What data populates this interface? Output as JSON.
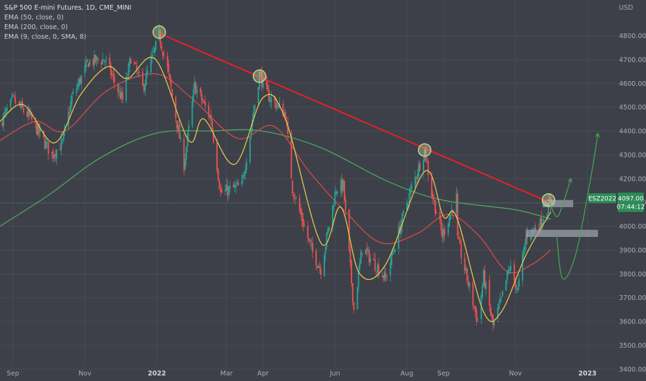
{
  "header": {
    "title": "S&P 500 E-mini Futures, 1D, CME_MINI",
    "indicators": [
      "EMA (50, close, 0)",
      "EMA (200, close, 0)",
      "EMA (9, close, 0, SMA, 8)"
    ]
  },
  "price_tag": {
    "symbol": "ESZ2022",
    "price": "4097.00",
    "countdown": "07:44:12"
  },
  "colors": {
    "background": "#3d4049",
    "grid": "#474b55",
    "up": "#26a69a",
    "down": "#ef5350",
    "ema9": "#e6c84c",
    "ema50": "#d74a4a",
    "ema200": "#4fa860",
    "trendline": "#e8202a",
    "projection": "#3fae4f",
    "highlight": "#b7d990"
  },
  "chart_data": {
    "type": "candlestick",
    "title": "S&P 500 E-mini Futures, 1D, CME_MINI",
    "currency": "USD",
    "y_ticks": [
      3400,
      3500,
      3600,
      3700,
      3800,
      3900,
      4000,
      4100,
      4200,
      4300,
      4400,
      4500,
      4600,
      4700,
      4800
    ],
    "y_tick_labels": [
      "3400.00",
      "3500.00",
      "3600.00",
      "3700.00",
      "3800.00",
      "3900.00",
      "4000.00",
      "4100.00",
      "4200.00",
      "4300.00",
      "4400.00",
      "4500.00",
      "4600.00",
      "4700.00",
      "4800.00"
    ],
    "ylim": [
      3350,
      4950
    ],
    "x_labels": [
      "Sep",
      "Nov",
      "2022",
      "Mar",
      "Apr",
      "Jun",
      "Aug",
      "Sep",
      "Nov",
      "2023"
    ],
    "x_label_dates": [
      "2021-09-01",
      "2021-11-01",
      "2022-01-01",
      "2022-03-01",
      "2022-04-01",
      "2022-06-01",
      "2022-08-01",
      "2022-09-01",
      "2022-11-01",
      "2023-01-01"
    ],
    "xlim": [
      "2021-08-21",
      "2023-01-26"
    ],
    "price_path": [
      [
        "2021-08-21",
        4430
      ],
      [
        "2021-09-01",
        4530
      ],
      [
        "2021-09-15",
        4460
      ],
      [
        "2021-10-04",
        4300
      ],
      [
        "2021-10-13",
        4350
      ],
      [
        "2021-10-21",
        4540
      ],
      [
        "2021-11-04",
        4690
      ],
      [
        "2021-11-18",
        4700
      ],
      [
        "2021-11-30",
        4560
      ],
      [
        "2021-12-03",
        4530
      ],
      [
        "2021-12-10",
        4710
      ],
      [
        "2021-12-20",
        4580
      ],
      [
        "2022-01-03",
        4800
      ],
      [
        "2022-01-10",
        4660
      ],
      [
        "2022-01-24",
        4260
      ],
      [
        "2022-02-02",
        4590
      ],
      [
        "2022-02-16",
        4450
      ],
      [
        "2022-02-24",
        4140
      ],
      [
        "2022-03-08",
        4160
      ],
      [
        "2022-03-14",
        4170
      ],
      [
        "2022-03-29",
        4640
      ],
      [
        "2022-04-05",
        4550
      ],
      [
        "2022-04-20",
        4470
      ],
      [
        "2022-04-26",
        4160
      ],
      [
        "2022-05-12",
        3900
      ],
      [
        "2022-05-20",
        3820
      ],
      [
        "2022-06-02",
        4160
      ],
      [
        "2022-06-08",
        4170
      ],
      [
        "2022-06-17",
        3650
      ],
      [
        "2022-06-24",
        3910
      ],
      [
        "2022-07-14",
        3780
      ],
      [
        "2022-08-01",
        4100
      ],
      [
        "2022-08-16",
        4320
      ],
      [
        "2022-08-22",
        4140
      ],
      [
        "2022-08-31",
        3960
      ],
      [
        "2022-09-12",
        4120
      ],
      [
        "2022-09-13",
        3940
      ],
      [
        "2022-09-30",
        3600
      ],
      [
        "2022-10-05",
        3790
      ],
      [
        "2022-10-13",
        3580
      ],
      [
        "2022-10-20",
        3690
      ],
      [
        "2022-10-27",
        3830
      ],
      [
        "2022-11-03",
        3730
      ],
      [
        "2022-11-10",
        3960
      ],
      [
        "2022-11-22",
        4010
      ],
      [
        "2022-11-30",
        4100
      ],
      [
        "2022-12-01",
        4097
      ]
    ],
    "series": [
      {
        "name": "EMA (9, close, 0, SMA, 8)",
        "points": [
          [
            "2021-08-21",
            4440
          ],
          [
            "2021-09-10",
            4510
          ],
          [
            "2021-10-06",
            4350
          ],
          [
            "2021-10-28",
            4550
          ],
          [
            "2021-11-20",
            4670
          ],
          [
            "2021-12-07",
            4620
          ],
          [
            "2021-12-31",
            4700
          ],
          [
            "2022-01-28",
            4360
          ],
          [
            "2022-02-10",
            4450
          ],
          [
            "2022-03-08",
            4260
          ],
          [
            "2022-04-01",
            4540
          ],
          [
            "2022-04-20",
            4450
          ],
          [
            "2022-05-20",
            3930
          ],
          [
            "2022-06-06",
            4080
          ],
          [
            "2022-06-22",
            3800
          ],
          [
            "2022-07-14",
            3840
          ],
          [
            "2022-08-16",
            4230
          ],
          [
            "2022-09-01",
            4040
          ],
          [
            "2022-09-12",
            4040
          ],
          [
            "2022-10-05",
            3640
          ],
          [
            "2022-10-20",
            3640
          ],
          [
            "2022-11-10",
            3880
          ],
          [
            "2022-12-01",
            4060
          ]
        ]
      },
      {
        "name": "EMA (50, close, 0)",
        "points": [
          [
            "2021-08-21",
            4360
          ],
          [
            "2021-09-20",
            4440
          ],
          [
            "2021-10-15",
            4400
          ],
          [
            "2021-11-20",
            4570
          ],
          [
            "2021-12-31",
            4640
          ],
          [
            "2022-01-30",
            4540
          ],
          [
            "2022-03-10",
            4370
          ],
          [
            "2022-04-10",
            4420
          ],
          [
            "2022-05-10",
            4230
          ],
          [
            "2022-06-10",
            4060
          ],
          [
            "2022-07-10",
            3930
          ],
          [
            "2022-08-10",
            3970
          ],
          [
            "2022-09-05",
            4050
          ],
          [
            "2022-10-01",
            3960
          ],
          [
            "2022-10-25",
            3810
          ],
          [
            "2022-11-15",
            3840
          ],
          [
            "2022-12-01",
            3900
          ]
        ]
      },
      {
        "name": "EMA (200, close, 0)",
        "points": [
          [
            "2021-08-21",
            4000
          ],
          [
            "2021-10-01",
            4130
          ],
          [
            "2021-11-15",
            4290
          ],
          [
            "2021-12-31",
            4390
          ],
          [
            "2022-02-15",
            4400
          ],
          [
            "2022-03-31",
            4400
          ],
          [
            "2022-05-20",
            4330
          ],
          [
            "2022-07-15",
            4190
          ],
          [
            "2022-08-31",
            4110
          ],
          [
            "2022-10-31",
            4070
          ],
          [
            "2022-12-01",
            4030
          ]
        ]
      }
    ],
    "annotations": {
      "trendline": [
        [
          "2022-01-03",
          4810
        ],
        [
          "2022-11-30",
          4100
        ]
      ],
      "highlight_circles": [
        [
          "2022-01-03",
          4815
        ],
        [
          "2022-03-29",
          4630
        ],
        [
          "2022-08-16",
          4320
        ],
        [
          "2022-11-29",
          4110
        ]
      ],
      "zones": [
        {
          "from": "2022-11-24",
          "to": "2022-12-20",
          "low": 4080,
          "high": 4110
        },
        {
          "from": "2022-11-10",
          "to": "2023-01-10",
          "low": 3955,
          "high": 3985
        }
      ],
      "projection_up": [
        [
          "2022-11-30",
          4097
        ],
        [
          "2022-12-06",
          4040
        ],
        [
          "2022-12-11",
          4090
        ],
        [
          "2022-12-18",
          4200
        ]
      ],
      "projection_long": [
        [
          "2022-12-06",
          3960
        ],
        [
          "2022-12-11",
          3780
        ],
        [
          "2022-12-22",
          3880
        ],
        [
          "2023-01-03",
          4180
        ],
        [
          "2023-01-10",
          4390
        ]
      ],
      "current_price_line": 4097
    }
  }
}
